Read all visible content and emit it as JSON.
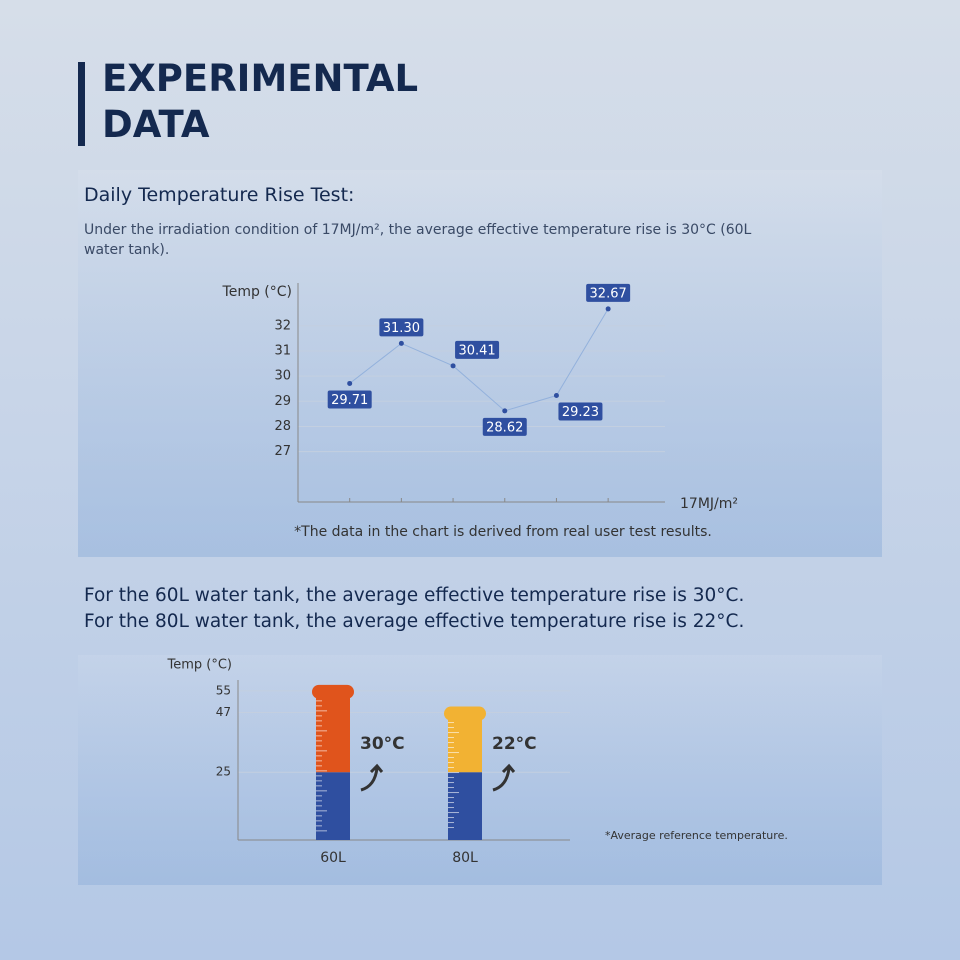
{
  "header": {
    "title": "EXPERIMENTAL DATA"
  },
  "section1": {
    "heading": "Daily Temperature Rise Test:",
    "description": "Under the irradiation condition of 17MJ/m², the average effective temperature rise is 30°C (60L water tank)."
  },
  "section2": {
    "line1": "For the 60L water tank, the average effective temperature rise is 30°C.",
    "line2": "For the 80L water tank, the average effective temperature rise is 22°C."
  },
  "chart_data": [
    {
      "type": "line",
      "ylabel": "Temp (°C)",
      "xlabel": "17MJ/m²",
      "note": "*The data in the chart is derived from real user test results.",
      "categories": [
        null,
        null,
        null,
        null,
        null,
        null
      ],
      "values": [
        29.71,
        31.3,
        30.41,
        28.62,
        29.23,
        32.67
      ],
      "value_labels": [
        "29.71",
        "31.30",
        "30.41",
        "28.62",
        "29.23",
        "32.67"
      ],
      "color": "#2f4fa0",
      "line_color": "#93b1dc",
      "ylim": [
        25,
        33.7
      ],
      "yticks": [
        27,
        28,
        29,
        30,
        31,
        32
      ],
      "grid": true
    },
    {
      "type": "bar",
      "ylabel": "Temp (°C)",
      "note": "*Average reference temperature.",
      "categories": [
        "60L",
        "80L"
      ],
      "series": [
        {
          "color": "#2f4fa0",
          "values": [
            25,
            25
          ]
        },
        {
          "colors": [
            "#e0541c",
            "#f2b233"
          ],
          "values": [
            30,
            22
          ],
          "value_labels": [
            "30°C",
            "22°C"
          ]
        }
      ],
      "ylim": [
        0,
        59
      ],
      "yticks": [
        25,
        47,
        55
      ],
      "grid": true
    }
  ]
}
